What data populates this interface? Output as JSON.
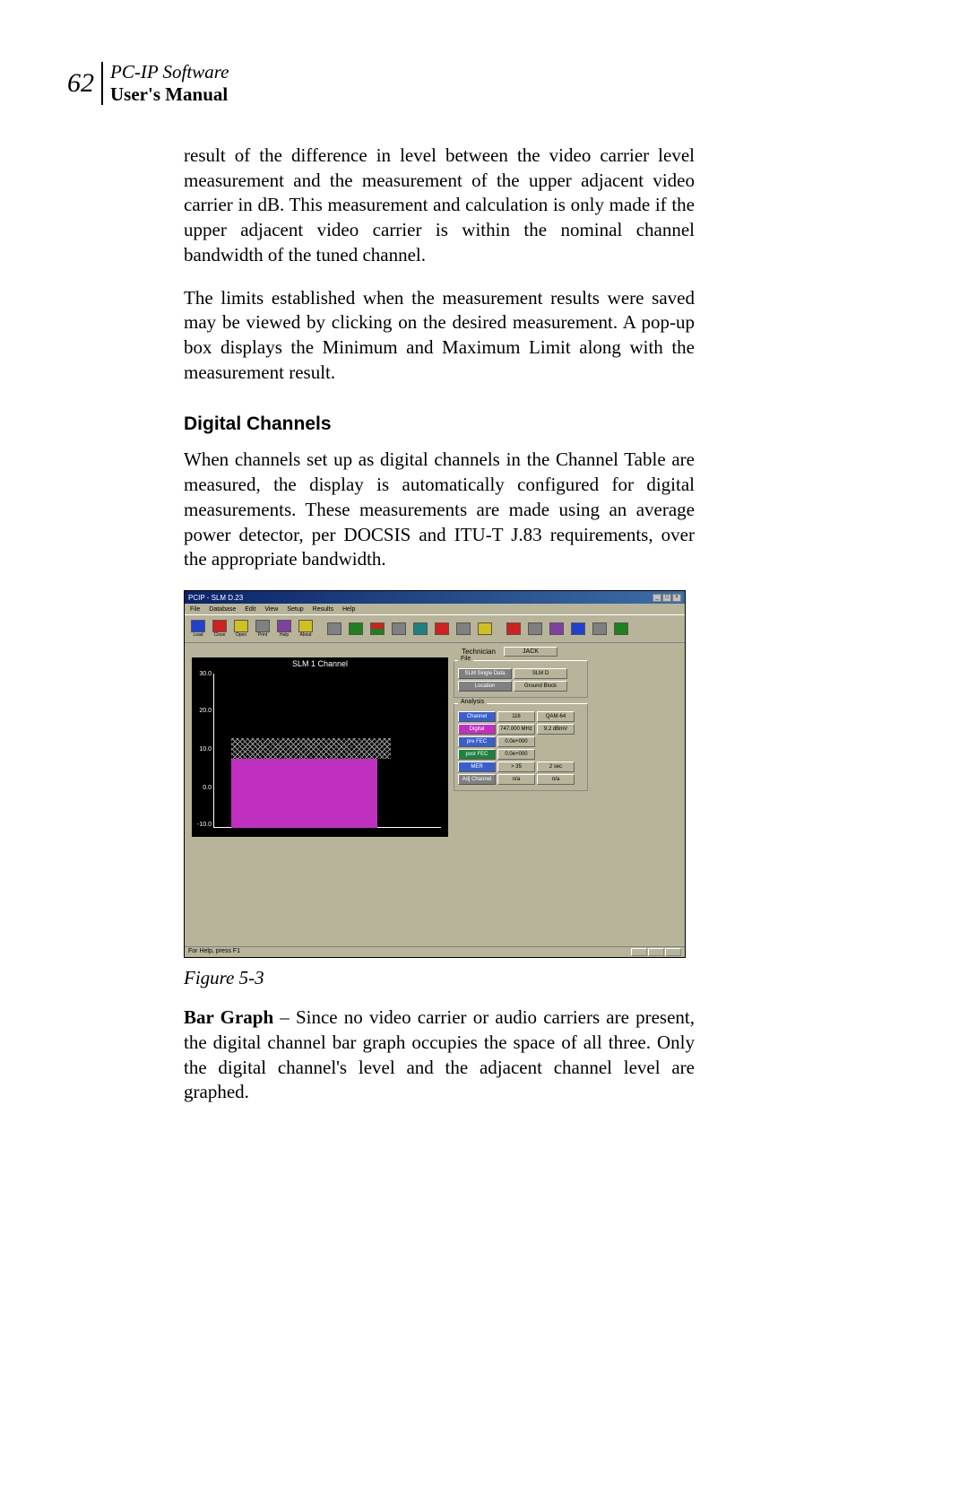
{
  "header": {
    "page_number": "62",
    "line1": "PC-IP Software",
    "line2": "User's Manual"
  },
  "body": {
    "para1": "result of the difference in level between the video carrier level measurement and the measurement of the upper adjacent video carrier in dB. This measurement and calculation is only made if the upper adjacent video carrier is within the nominal channel bandwidth of the tuned channel.",
    "para2": "The limits established when the measurement results were saved may be viewed by clicking on the desired measurement. A pop-up box displays the Minimum and Maximum Limit along with the measurement result.",
    "heading": "Digital Channels",
    "para3": "When channels set up as digital channels in the Channel Table are measured, the display is automatically configured for digital measurements. These measurements are made using an average power detector, per DOCSIS and ITU-T J.83 requirements, over the appropriate bandwidth.",
    "figure_caption": "Figure 5-3",
    "para4_bold": "Bar Graph",
    "para4_rest": " – Since no video carrier or audio carriers are present, the digital channel bar graph occupies the space of all three. Only the digital channel's level and the adjacent channel level are graphed."
  },
  "screenshot": {
    "title": "PCIP - SLM D.23",
    "menu": {
      "file": "File",
      "database": "Database",
      "edit": "Edit",
      "view": "View",
      "setup": "Setup",
      "results": "Results",
      "help": "Help"
    },
    "toolbar_labels": {
      "load": "Load",
      "close": "Close",
      "open": "Open",
      "print": "Print",
      "help": "Help",
      "about": "About"
    },
    "chart": {
      "title": "SLM 1 Channel",
      "type": "bar",
      "background_color": "#000000",
      "bar_color": "#c030c0",
      "hatch_color": "#999999",
      "axis_color": "#ffffff",
      "y_ticks": [
        "30.0",
        "20.0",
        "10.0",
        "0.0",
        "-10.0"
      ],
      "y_min": -10.0,
      "y_max": 30.0,
      "main_bar": {
        "top_pct": 55,
        "bottom_pct": 100,
        "left_pct": 8,
        "right_pct": 72
      },
      "hatch_region": {
        "top_pct": 42,
        "bottom_pct": 55,
        "left_pct": 8,
        "right_pct": 78
      }
    },
    "technician": {
      "label": "Technician",
      "value": "JACK"
    },
    "file_group": {
      "title": "File",
      "rows": [
        {
          "btn": "SLM Single Data",
          "btn_color": "#808080",
          "val": "SLM D"
        },
        {
          "btn": "Location",
          "btn_color": "#808080",
          "val": "Ground Block"
        }
      ]
    },
    "analysis_group": {
      "title": "Analysis",
      "rows": [
        {
          "btn": "Channel",
          "btn_color": "#3a5fcd",
          "val1": "116",
          "val2": "QAM-64"
        },
        {
          "btn": "Digital",
          "btn_color": "#c030c0",
          "val1": "747.000 MHz",
          "val2": "9.2 dBmV"
        },
        {
          "btn": "pre FEC",
          "btn_color": "#3a5fcd",
          "val1": "0.0e+000",
          "val2": ""
        },
        {
          "btn": "post FEC",
          "btn_color": "#208040",
          "val1": "0.0e+000",
          "val2": ""
        },
        {
          "btn": "MER",
          "btn_color": "#3a5fcd",
          "val1": "> 35",
          "val2": "2 sec"
        },
        {
          "btn": "Adj Channel",
          "btn_color": "#808080",
          "val1": "n/a",
          "val2": "n/a"
        }
      ]
    },
    "statusbar": "For Help, press F1"
  }
}
